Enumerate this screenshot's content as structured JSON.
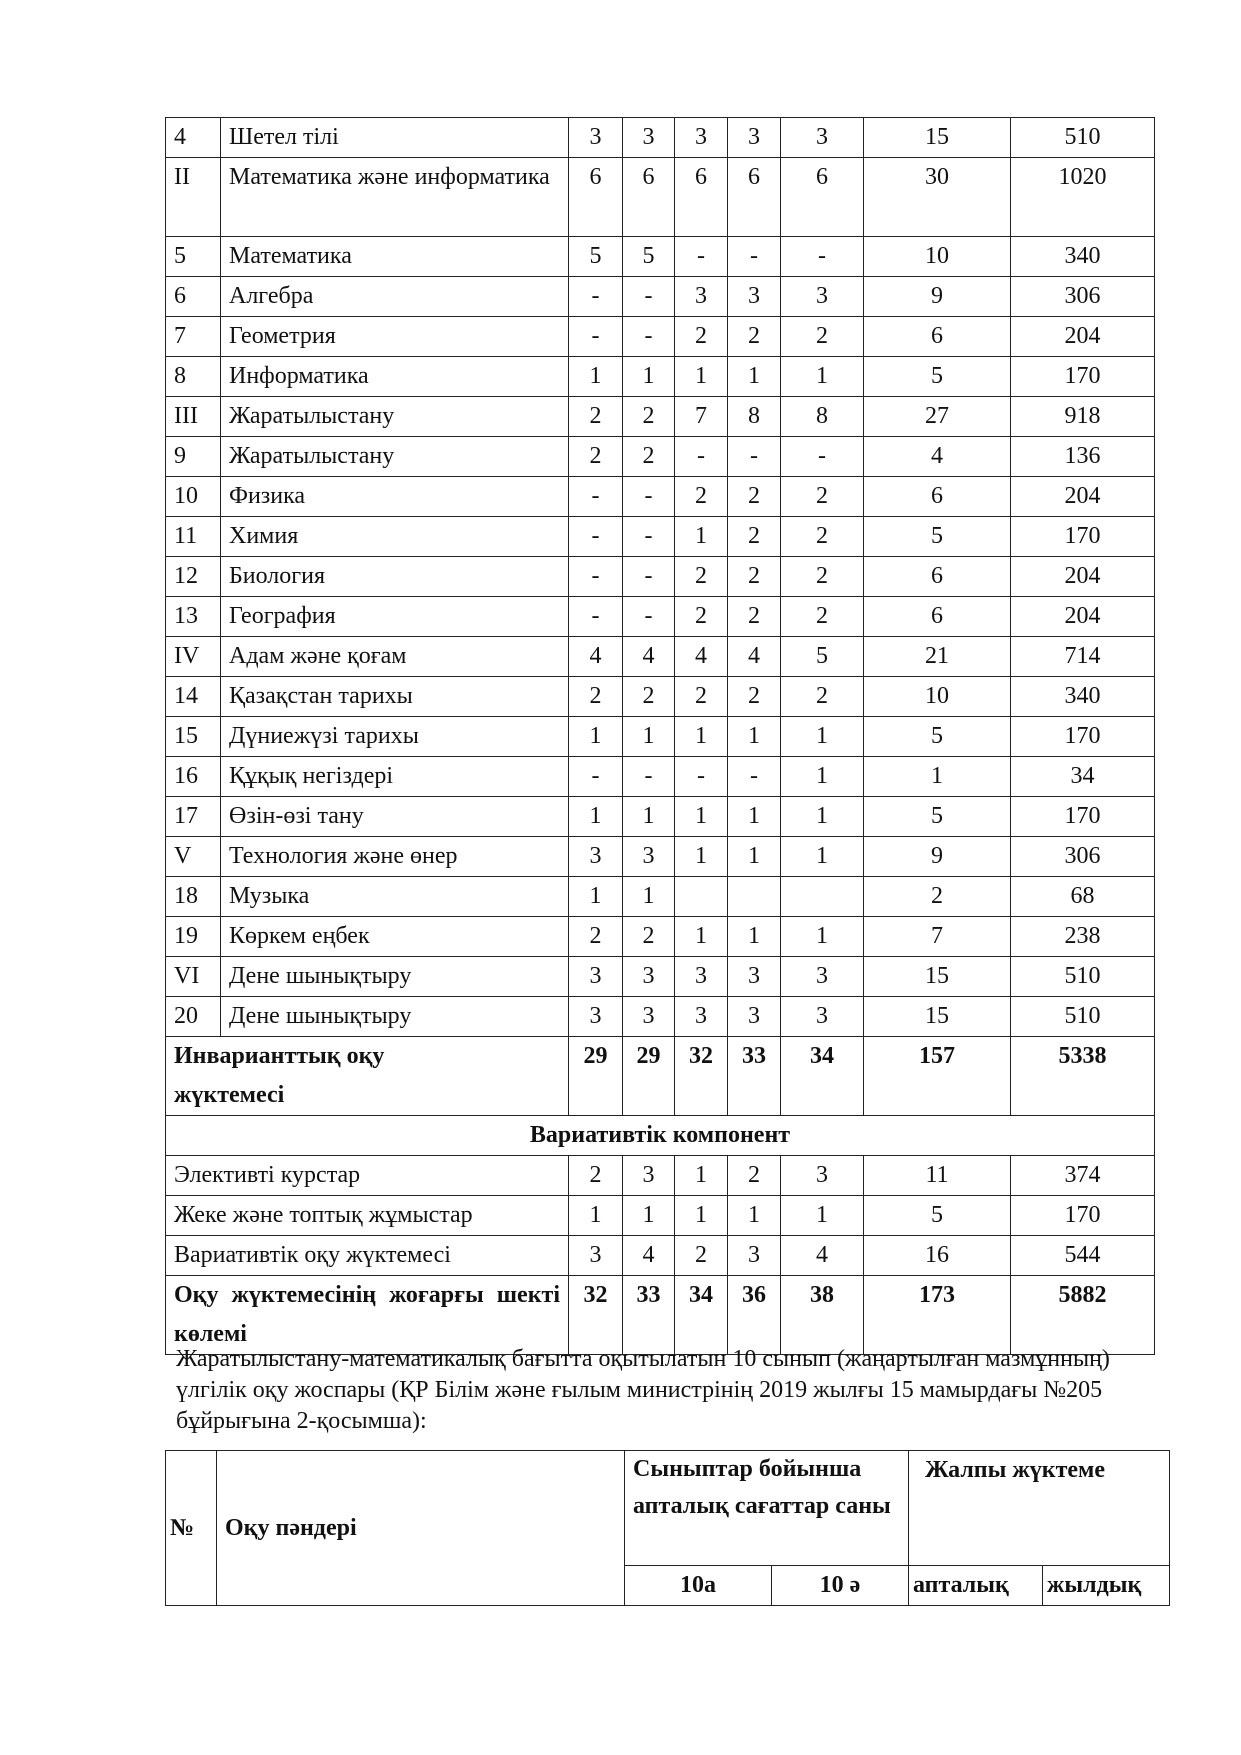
{
  "table1": {
    "rows": [
      {
        "no": "4",
        "name": "Шетел тілі",
        "v": [
          "3",
          "3",
          "3",
          "3",
          "3"
        ],
        "week": "15",
        "year": "510"
      },
      {
        "no": "II",
        "name": "Математика және информатика",
        "v": [
          "6",
          "6",
          "6",
          "6",
          "6"
        ],
        "week": "30",
        "year": "1020",
        "tall": true
      },
      {
        "no": "5",
        "name": "Математика",
        "v": [
          "5",
          "5",
          "-",
          "-",
          "-"
        ],
        "week": "10",
        "year": "340"
      },
      {
        "no": "6",
        "name": "Алгебра",
        "v": [
          "-",
          "-",
          "3",
          "3",
          "3"
        ],
        "week": "9",
        "year": "306"
      },
      {
        "no": "7",
        "name": "Геометрия",
        "v": [
          "-",
          "-",
          "2",
          "2",
          "2"
        ],
        "week": "6",
        "year": "204"
      },
      {
        "no": "8",
        "name": "Информатика",
        "v": [
          "1",
          "1",
          "1",
          "1",
          "1"
        ],
        "week": "5",
        "year": "170"
      },
      {
        "no": "III",
        "name": "Жаратылыстану",
        "v": [
          "2",
          "2",
          "7",
          "8",
          "8"
        ],
        "week": "27",
        "year": "918"
      },
      {
        "no": "9",
        "name": "Жаратылыстану",
        "v": [
          "2",
          "2",
          "-",
          "-",
          "-"
        ],
        "week": "4",
        "year": "136"
      },
      {
        "no": "10",
        "name": "Физика",
        "v": [
          "-",
          "-",
          "2",
          "2",
          "2"
        ],
        "week": "6",
        "year": "204"
      },
      {
        "no": "11",
        "name": "Химия",
        "v": [
          "-",
          "-",
          "1",
          "2",
          "2"
        ],
        "week": "5",
        "year": "170"
      },
      {
        "no": "12",
        "name": "Биология",
        "v": [
          "-",
          "-",
          "2",
          "2",
          "2"
        ],
        "week": "6",
        "year": "204"
      },
      {
        "no": "13",
        "name": "География",
        "v": [
          "-",
          "-",
          "2",
          "2",
          "2"
        ],
        "week": "6",
        "year": "204"
      },
      {
        "no": "IV",
        "name": "Адам және қоғам",
        "v": [
          "4",
          "4",
          "4",
          "4",
          "5"
        ],
        "week": "21",
        "year": "714"
      },
      {
        "no": "14",
        "name": "Қазақстан тарихы",
        "v": [
          "2",
          "2",
          "2",
          "2",
          "2"
        ],
        "week": "10",
        "year": "340"
      },
      {
        "no": "15",
        "name": "Дүниежүзі тарихы",
        "v": [
          "1",
          "1",
          "1",
          "1",
          "1"
        ],
        "week": "5",
        "year": "170"
      },
      {
        "no": "16",
        "name": "Құқық негіздері",
        "v": [
          "-",
          "-",
          "-",
          "-",
          "1"
        ],
        "week": "1",
        "year": "34"
      },
      {
        "no": "17",
        "name": "Өзін-өзі тану",
        "v": [
          "1",
          "1",
          "1",
          "1",
          "1"
        ],
        "week": "5",
        "year": "170"
      },
      {
        "no": "V",
        "name": "Технология және өнер",
        "v": [
          "3",
          "3",
          "1",
          "1",
          "1"
        ],
        "week": "9",
        "year": "306"
      },
      {
        "no": "18",
        "name": "Музыка",
        "v": [
          "1",
          "1",
          "",
          "",
          ""
        ],
        "week": "2",
        "year": "68"
      },
      {
        "no": "19",
        "name": "Көркем еңбек",
        "v": [
          "2",
          "2",
          "1",
          "1",
          "1"
        ],
        "week": "7",
        "year": "238"
      },
      {
        "no": "VI",
        "name": "Дене шынықтыру",
        "v": [
          "3",
          "3",
          "3",
          "3",
          "3"
        ],
        "week": "15",
        "year": "510"
      },
      {
        "no": "20",
        "name": "Дене шынықтыру",
        "v": [
          "3",
          "3",
          "3",
          "3",
          "3"
        ],
        "week": "15",
        "year": "510"
      }
    ],
    "invariant": {
      "name": "Инварианттық оқу жүктемесі",
      "v": [
        "29",
        "29",
        "32",
        "33",
        "34"
      ],
      "week": "157",
      "year": "5338"
    },
    "variative_header": "Вариативтік компонент",
    "variative_rows": [
      {
        "name": "Элективті курстар",
        "v": [
          "2",
          "3",
          "1",
          "2",
          "3"
        ],
        "week": "11",
        "year": "374"
      },
      {
        "name": "Жеке және топтық жұмыстар",
        "v": [
          "1",
          "1",
          "1",
          "1",
          "1"
        ],
        "week": "5",
        "year": "170"
      },
      {
        "name": "Вариативтік оқу жүктемесі",
        "v": [
          "3",
          "4",
          "2",
          "3",
          "4"
        ],
        "week": "16",
        "year": "544"
      }
    ],
    "max": {
      "name": "Оқу жүктемесінің жоғарғы шекті көлемі",
      "v": [
        "32",
        "33",
        "34",
        "36",
        "38"
      ],
      "week": "173",
      "year": "5882"
    }
  },
  "paragraph": "Жаратылыстану-математикалық бағытта оқытылатын 10 сынып (жаңартылған мазмұнның) үлгілік оқу жоспары  (ҚР Білім және ғылым министрінің 2019 жылғы 15 мамырдағы №205 бұйрығына 2-қосымша):",
  "table2": {
    "no": "№",
    "subjects": "Оқу пәндері",
    "weekly_hours": "Сыныптар бойынша апталық сағаттар саны",
    "total_load": "Жалпы жүктеме",
    "class_a": "10а",
    "class_b": "10 ә",
    "weekly": "апталық",
    "yearly": "жылдық"
  }
}
